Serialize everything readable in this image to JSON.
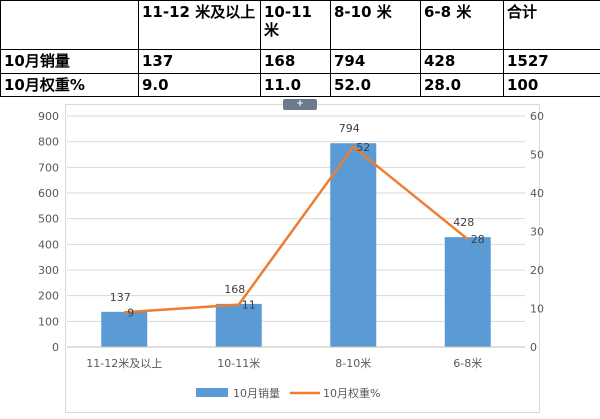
{
  "table": {
    "header": [
      "",
      "11-12 米及以上",
      "10-11 米",
      "8-10 米",
      "6-8 米",
      "合计"
    ],
    "rows": [
      {
        "label": "10月销量",
        "cells": [
          "137",
          "168",
          "794",
          "428",
          "1527"
        ]
      },
      {
        "label": "10月权重%",
        "cells": [
          "9.0",
          "11.0",
          "52.0",
          "28.0",
          "100"
        ]
      }
    ]
  },
  "handle_symbol": "+",
  "colors": {
    "bar": "#5b9bd5",
    "line": "#ed7d31",
    "grid": "#d9d9d9"
  },
  "chart_data": {
    "type": "bar",
    "categories": [
      "11-12米及以上",
      "10-11米",
      "8-10米",
      "6-8米"
    ],
    "series": [
      {
        "name": "10月销量",
        "type": "bar",
        "axis": "left",
        "values": [
          137,
          168,
          794,
          428
        ],
        "labels": [
          "137",
          "168",
          "794",
          "428"
        ]
      },
      {
        "name": "10月权重%",
        "type": "line",
        "axis": "right",
        "values": [
          9,
          11,
          52,
          28
        ],
        "labels": [
          "9",
          "11",
          "52",
          "28"
        ]
      }
    ],
    "y_left": {
      "min": 0,
      "max": 900,
      "step": 100,
      "ticks": [
        "0",
        "100",
        "200",
        "300",
        "400",
        "500",
        "600",
        "700",
        "800",
        "900"
      ]
    },
    "y_right": {
      "min": 0,
      "max": 60,
      "step": 10,
      "ticks": [
        "0",
        "10",
        "20",
        "30",
        "40",
        "50",
        "60"
      ]
    },
    "grid": true,
    "legend_position": "bottom"
  }
}
